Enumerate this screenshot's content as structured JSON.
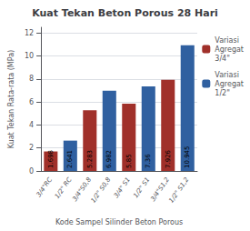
{
  "chart_data": {
    "type": "bar",
    "title": "Kuat Tekan Beton Porous 28 Hari",
    "xlabel": "Kode Sampel Silinder Beton Porous",
    "ylabel": "Kuat Tekan Rata-rata (MPa)",
    "categories": [
      "3/4\"RC",
      "1/2\" RC",
      "3/4\"S0,8",
      "1/2\" S0,8",
      "3/4\" S1",
      "1/2\" S1",
      "3/4\"S1,2",
      "1/2\" S1,2"
    ],
    "series": [
      {
        "name": "Variasi\nAgregat\n3/4\"",
        "color": "#A0302A",
        "values": [
          1.698,
          null,
          5.283,
          null,
          5.85,
          null,
          7.926,
          null
        ]
      },
      {
        "name": "Variasi\nAgregat\n1/2\"",
        "color": "#3060A0",
        "values": [
          null,
          2.641,
          null,
          6.982,
          null,
          7.36,
          null,
          10.945
        ]
      }
    ],
    "ylim": [
      0,
      12.5
    ],
    "yticks": [
      0,
      2,
      4,
      6,
      8,
      10,
      12
    ],
    "grid": true,
    "legend": "upper right",
    "data_labels": true
  }
}
